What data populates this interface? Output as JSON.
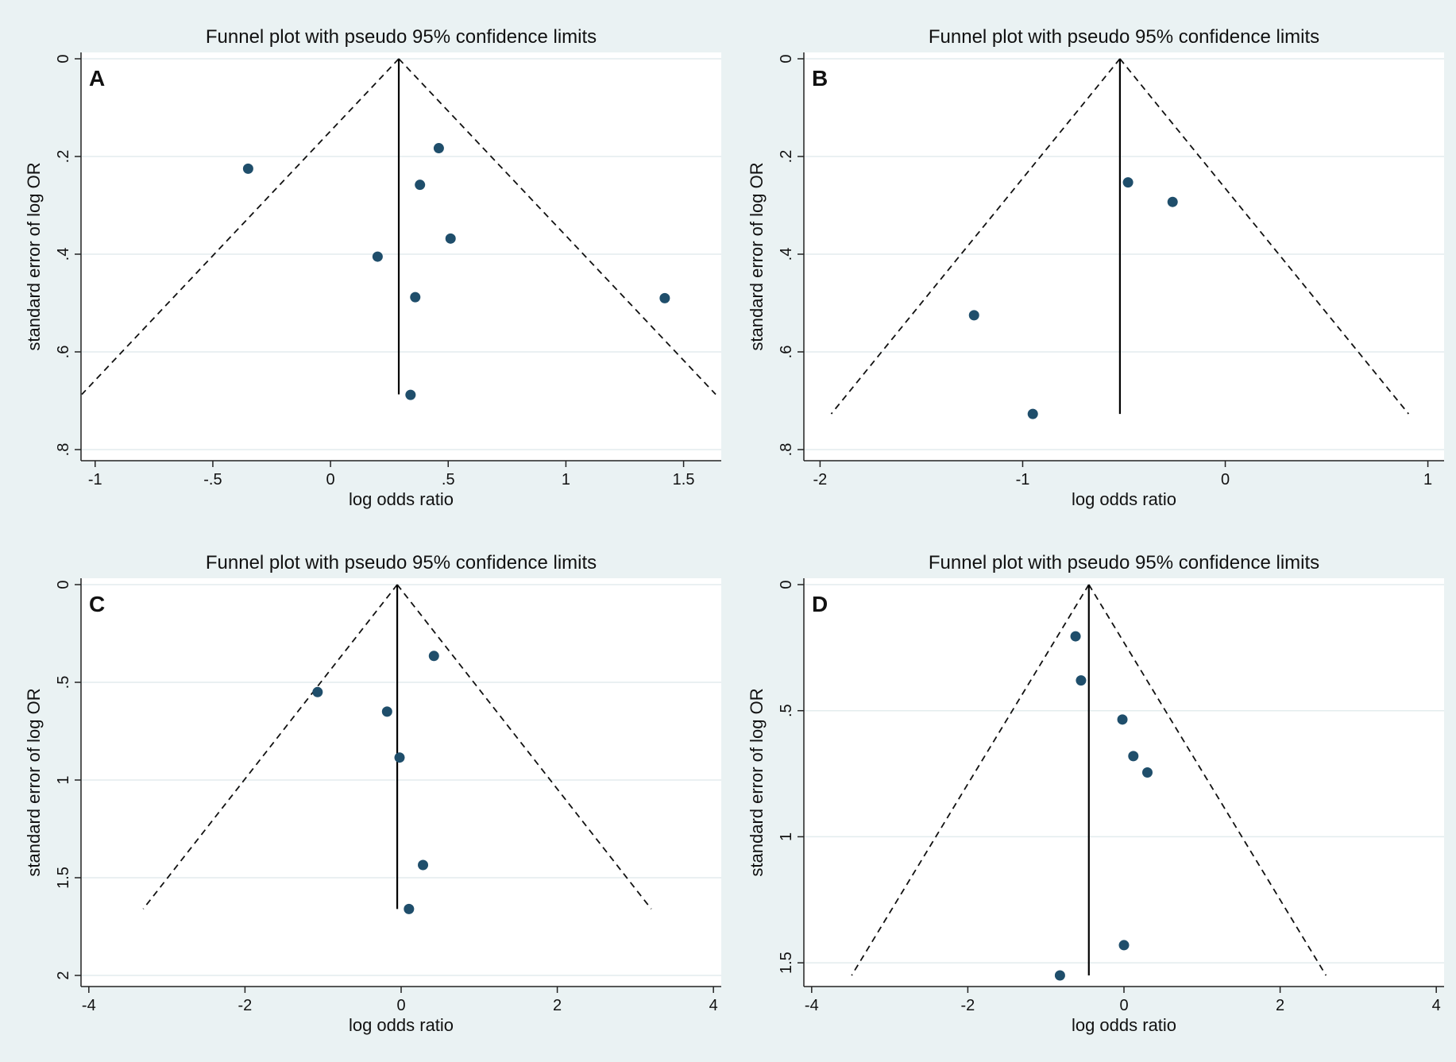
{
  "chart_data": [
    {
      "panel": "A",
      "type": "scatter",
      "title": "Funnel plot with pseudo 95% confidence limits",
      "xlabel": "log odds ratio",
      "ylabel": "standard error of log OR",
      "xlim": [
        -1.06,
        1.66
      ],
      "ylim": [
        0,
        0.8
      ],
      "y_inverted": true,
      "x_ticks": [
        -1,
        -0.5,
        0,
        0.5,
        1,
        1.5
      ],
      "x_tick_labels": [
        "-1",
        "-.5",
        "0",
        ".5",
        "1",
        "1.5"
      ],
      "y_ticks": [
        0,
        0.2,
        0.4,
        0.6,
        0.8
      ],
      "y_tick_labels": [
        "0",
        ".2",
        ".4",
        ".6",
        ".8"
      ],
      "pooled_estimate": 0.29,
      "funnel_se_max": 0.687,
      "points": [
        {
          "x": -0.35,
          "y": 0.225
        },
        {
          "x": 0.46,
          "y": 0.183
        },
        {
          "x": 0.38,
          "y": 0.258
        },
        {
          "x": 0.51,
          "y": 0.368
        },
        {
          "x": 0.2,
          "y": 0.405
        },
        {
          "x": 0.36,
          "y": 0.488
        },
        {
          "x": 1.42,
          "y": 0.49
        },
        {
          "x": 0.34,
          "y": 0.688
        }
      ]
    },
    {
      "panel": "B",
      "type": "scatter",
      "title": "Funnel plot with pseudo 95% confidence limits",
      "xlabel": "log odds ratio",
      "ylabel": "standard error of log OR",
      "xlim": [
        -2.08,
        1.08
      ],
      "ylim": [
        0,
        0.8
      ],
      "y_inverted": true,
      "x_ticks": [
        -2,
        -1,
        0,
        1
      ],
      "x_tick_labels": [
        "-2",
        "-1",
        "0",
        "1"
      ],
      "y_ticks": [
        0,
        0.2,
        0.4,
        0.6,
        0.8
      ],
      "y_tick_labels": [
        "0",
        ".2",
        ".4",
        ".6",
        ".8"
      ],
      "pooled_estimate": -0.52,
      "funnel_se_max": 0.727,
      "points": [
        {
          "x": -0.48,
          "y": 0.253
        },
        {
          "x": -0.26,
          "y": 0.293
        },
        {
          "x": -1.24,
          "y": 0.525
        },
        {
          "x": -0.95,
          "y": 0.727
        }
      ]
    },
    {
      "panel": "C",
      "type": "scatter",
      "title": "Funnel plot with pseudo 95% confidence limits",
      "xlabel": "log odds ratio",
      "ylabel": "standard error of log OR",
      "xlim": [
        -4.1,
        4.1
      ],
      "ylim": [
        0,
        2
      ],
      "y_inverted": true,
      "x_ticks": [
        -4,
        -2,
        0,
        2,
        4
      ],
      "x_tick_labels": [
        "-4",
        "-2",
        "0",
        "2",
        "4"
      ],
      "y_ticks": [
        0,
        0.5,
        1,
        1.5,
        2
      ],
      "y_tick_labels": [
        "0",
        ".5",
        "1",
        "1.5",
        "2"
      ],
      "pooled_estimate": -0.05,
      "funnel_se_max": 1.66,
      "points": [
        {
          "x": 0.42,
          "y": 0.365
        },
        {
          "x": -1.07,
          "y": 0.55
        },
        {
          "x": -0.18,
          "y": 0.65
        },
        {
          "x": -0.02,
          "y": 0.885
        },
        {
          "x": 0.28,
          "y": 1.435
        },
        {
          "x": 0.1,
          "y": 1.66
        }
      ]
    },
    {
      "panel": "D",
      "type": "scatter",
      "title": "Funnel plot with pseudo 95% confidence limits",
      "xlabel": "log odds ratio",
      "ylabel": "standard error of log OR",
      "xlim": [
        -4.1,
        4.1
      ],
      "ylim": [
        0,
        1.55
      ],
      "y_inverted": true,
      "x_ticks": [
        -4,
        -2,
        0,
        2,
        4
      ],
      "x_tick_labels": [
        "-4",
        "-2",
        "0",
        "2",
        "4"
      ],
      "y_ticks": [
        0,
        0.5,
        1,
        1.5
      ],
      "y_tick_labels": [
        "0",
        ".5",
        "1",
        "1.5"
      ],
      "pooled_estimate": -0.45,
      "funnel_se_max": 1.55,
      "points": [
        {
          "x": -0.62,
          "y": 0.205
        },
        {
          "x": -0.55,
          "y": 0.38
        },
        {
          "x": -0.02,
          "y": 0.535
        },
        {
          "x": 0.12,
          "y": 0.68
        },
        {
          "x": 0.3,
          "y": 0.745
        },
        {
          "x": 0.0,
          "y": 1.43
        },
        {
          "x": -0.82,
          "y": 1.55
        }
      ]
    }
  ]
}
